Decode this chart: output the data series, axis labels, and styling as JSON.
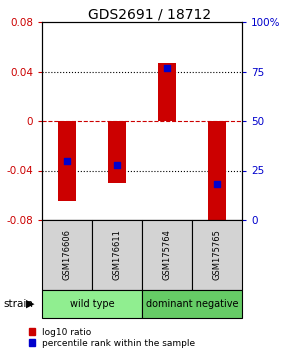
{
  "title": "GDS2691 / 18712",
  "samples": [
    "GSM176606",
    "GSM176611",
    "GSM175764",
    "GSM175765"
  ],
  "log10_ratios": [
    -0.065,
    -0.05,
    0.047,
    -0.083
  ],
  "percentile_ranks": [
    30,
    28,
    77,
    18
  ],
  "groups": [
    {
      "name": "wild type",
      "samples": [
        0,
        1
      ],
      "color": "#90EE90"
    },
    {
      "name": "dominant negative",
      "samples": [
        2,
        3
      ],
      "color": "#66CC66"
    }
  ],
  "group_label": "strain",
  "ylim": [
    -0.08,
    0.08
  ],
  "y2lim": [
    0,
    100
  ],
  "yticks": [
    -0.08,
    -0.04,
    0,
    0.04,
    0.08
  ],
  "y2ticks": [
    0,
    25,
    50,
    75,
    100
  ],
  "y2ticklabels": [
    "0",
    "25",
    "50",
    "75",
    "100%"
  ],
  "bar_color": "#CC0000",
  "dot_color": "#0000CC",
  "bar_width": 0.35,
  "dot_size": 25,
  "legend": [
    {
      "color": "#CC0000",
      "label": "log10 ratio"
    },
    {
      "color": "#0000CC",
      "label": "percentile rank within the sample"
    }
  ],
  "left_tick_color": "#CC0000",
  "right_tick_color": "#0000CC"
}
